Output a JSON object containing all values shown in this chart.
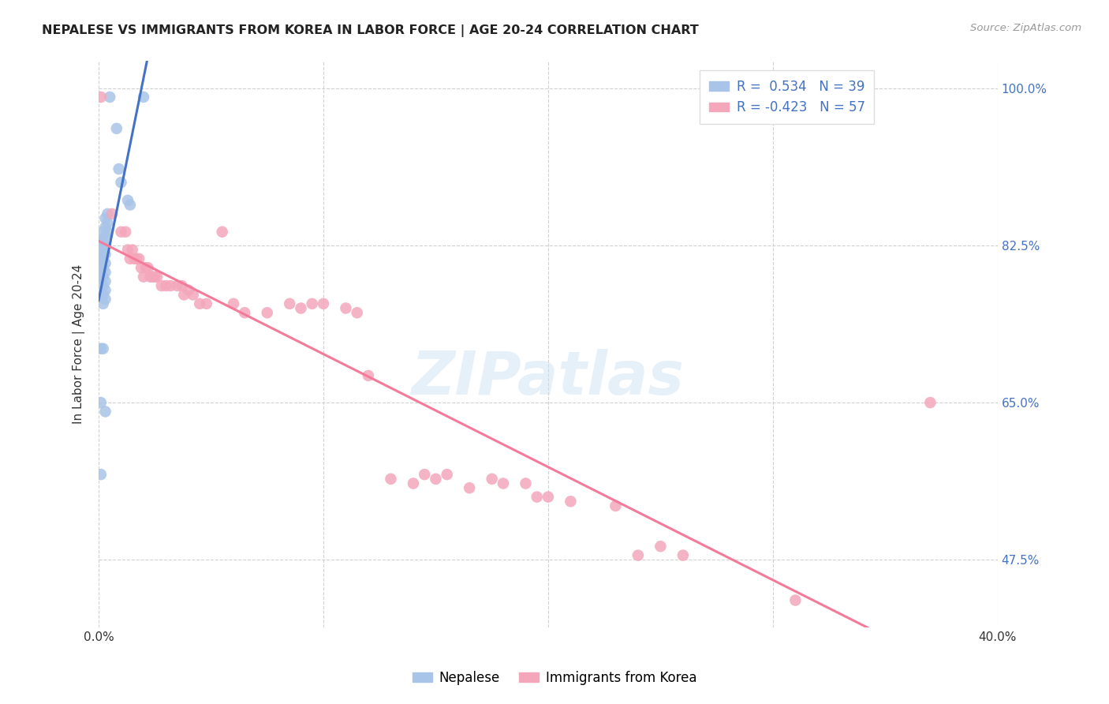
{
  "title": "NEPALESE VS IMMIGRANTS FROM KOREA IN LABOR FORCE | AGE 20-24 CORRELATION CHART",
  "source": "Source: ZipAtlas.com",
  "ylabel": "In Labor Force | Age 20-24",
  "xlim": [
    0.0,
    0.4
  ],
  "ylim": [
    0.4,
    1.03
  ],
  "yticks": [
    0.475,
    0.65,
    0.825,
    1.0
  ],
  "ytick_labels": [
    "47.5%",
    "65.0%",
    "82.5%",
    "100.0%"
  ],
  "xticks": [
    0.0,
    0.1,
    0.2,
    0.3,
    0.4
  ],
  "xtick_labels": [
    "0.0%",
    "",
    "",
    "",
    "40.0%"
  ],
  "watermark": "ZIPatlas",
  "nepalese_color": "#a8c4e8",
  "korea_color": "#f4a7bb",
  "nepalese_line_color": "#4472c4",
  "korea_line_color": "#f47a9a",
  "nepalese_points": [
    [
      0.005,
      0.99
    ],
    [
      0.008,
      0.955
    ],
    [
      0.009,
      0.91
    ],
    [
      0.01,
      0.895
    ],
    [
      0.013,
      0.875
    ],
    [
      0.014,
      0.87
    ],
    [
      0.004,
      0.86
    ],
    [
      0.004,
      0.85
    ],
    [
      0.004,
      0.84
    ],
    [
      0.003,
      0.855
    ],
    [
      0.003,
      0.845
    ],
    [
      0.003,
      0.835
    ],
    [
      0.003,
      0.825
    ],
    [
      0.003,
      0.815
    ],
    [
      0.003,
      0.805
    ],
    [
      0.003,
      0.795
    ],
    [
      0.003,
      0.785
    ],
    [
      0.003,
      0.775
    ],
    [
      0.003,
      0.765
    ],
    [
      0.002,
      0.84
    ],
    [
      0.002,
      0.83
    ],
    [
      0.002,
      0.82
    ],
    [
      0.002,
      0.81
    ],
    [
      0.002,
      0.8
    ],
    [
      0.002,
      0.79
    ],
    [
      0.002,
      0.78
    ],
    [
      0.002,
      0.77
    ],
    [
      0.002,
      0.76
    ],
    [
      0.001,
      0.83
    ],
    [
      0.001,
      0.82
    ],
    [
      0.001,
      0.81
    ],
    [
      0.001,
      0.8
    ],
    [
      0.001,
      0.79
    ],
    [
      0.001,
      0.71
    ],
    [
      0.001,
      0.65
    ],
    [
      0.002,
      0.71
    ],
    [
      0.003,
      0.64
    ],
    [
      0.001,
      0.57
    ],
    [
      0.02,
      0.99
    ]
  ],
  "korea_points": [
    [
      0.001,
      0.99
    ],
    [
      0.006,
      0.86
    ],
    [
      0.01,
      0.84
    ],
    [
      0.012,
      0.84
    ],
    [
      0.013,
      0.82
    ],
    [
      0.014,
      0.81
    ],
    [
      0.015,
      0.82
    ],
    [
      0.016,
      0.81
    ],
    [
      0.017,
      0.81
    ],
    [
      0.018,
      0.81
    ],
    [
      0.019,
      0.8
    ],
    [
      0.02,
      0.79
    ],
    [
      0.021,
      0.8
    ],
    [
      0.022,
      0.8
    ],
    [
      0.023,
      0.79
    ],
    [
      0.024,
      0.79
    ],
    [
      0.025,
      0.79
    ],
    [
      0.026,
      0.79
    ],
    [
      0.028,
      0.78
    ],
    [
      0.03,
      0.78
    ],
    [
      0.032,
      0.78
    ],
    [
      0.035,
      0.78
    ],
    [
      0.037,
      0.78
    ],
    [
      0.038,
      0.77
    ],
    [
      0.04,
      0.775
    ],
    [
      0.042,
      0.77
    ],
    [
      0.045,
      0.76
    ],
    [
      0.048,
      0.76
    ],
    [
      0.055,
      0.84
    ],
    [
      0.06,
      0.76
    ],
    [
      0.065,
      0.75
    ],
    [
      0.075,
      0.75
    ],
    [
      0.085,
      0.76
    ],
    [
      0.09,
      0.755
    ],
    [
      0.095,
      0.76
    ],
    [
      0.1,
      0.76
    ],
    [
      0.11,
      0.755
    ],
    [
      0.115,
      0.75
    ],
    [
      0.12,
      0.68
    ],
    [
      0.13,
      0.565
    ],
    [
      0.14,
      0.56
    ],
    [
      0.145,
      0.57
    ],
    [
      0.15,
      0.565
    ],
    [
      0.155,
      0.57
    ],
    [
      0.165,
      0.555
    ],
    [
      0.175,
      0.565
    ],
    [
      0.18,
      0.56
    ],
    [
      0.19,
      0.56
    ],
    [
      0.195,
      0.545
    ],
    [
      0.2,
      0.545
    ],
    [
      0.21,
      0.54
    ],
    [
      0.23,
      0.535
    ],
    [
      0.24,
      0.48
    ],
    [
      0.25,
      0.49
    ],
    [
      0.26,
      0.48
    ],
    [
      0.31,
      0.43
    ],
    [
      0.37,
      0.65
    ]
  ]
}
